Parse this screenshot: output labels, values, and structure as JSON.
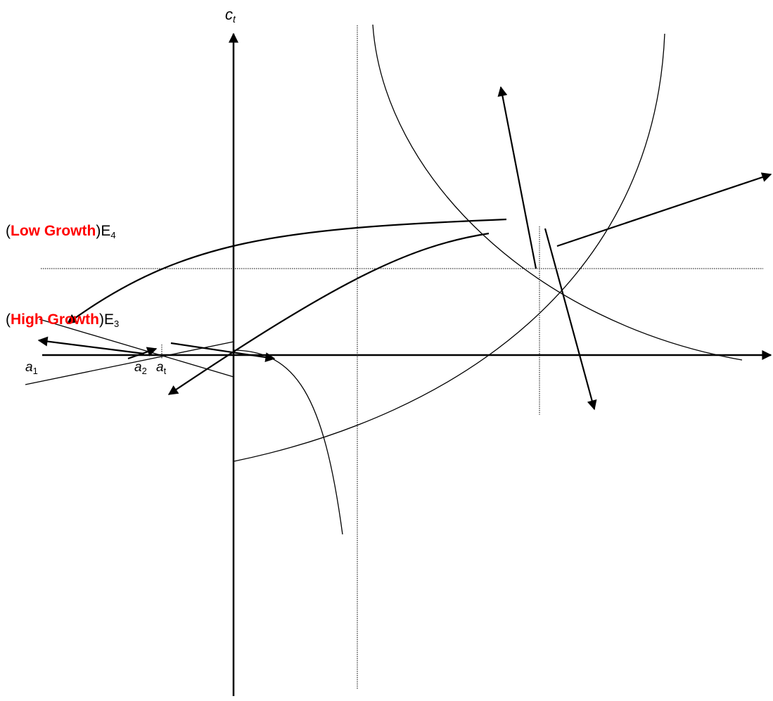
{
  "labels": {
    "y_axis": {
      "main": "c",
      "sub": "t"
    },
    "a1": {
      "main": "a",
      "sub": "1"
    },
    "a2": {
      "main": "a",
      "sub": "2"
    },
    "at": {
      "main": "a",
      "sub": "t"
    },
    "e4": {
      "open": "(",
      "highlight": "Low Growth",
      "close": ")E",
      "sub": "4"
    },
    "e3": {
      "open": "(",
      "highlight": "High Growth",
      "close": ")E",
      "sub": "3"
    }
  },
  "colors": {
    "ink": "#000000",
    "highlight": "#ff0000"
  }
}
